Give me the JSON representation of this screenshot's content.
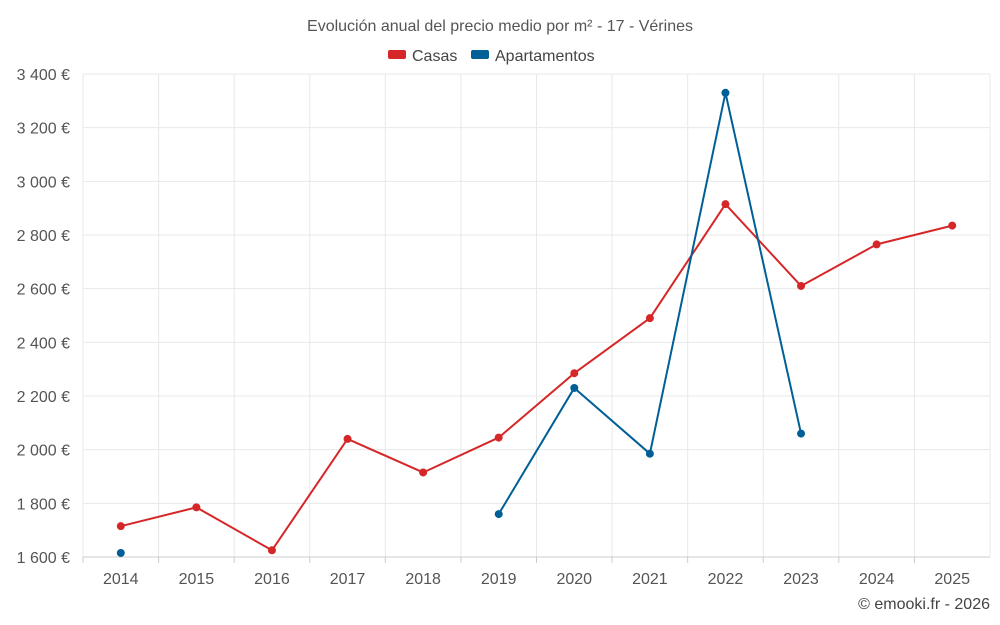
{
  "chart_data": {
    "type": "line",
    "title": "Evolución anual del precio medio por m² - 17 - Vérines",
    "categories": [
      "2014",
      "2015",
      "2016",
      "2017",
      "2018",
      "2019",
      "2020",
      "2021",
      "2022",
      "2023",
      "2024",
      "2025"
    ],
    "series": [
      {
        "name": "Casas",
        "color": "#d62728",
        "values": [
          1715,
          1785,
          1625,
          2040,
          1915,
          2045,
          2285,
          2490,
          2915,
          2610,
          2765,
          2835
        ]
      },
      {
        "name": "Apartamentos",
        "color": "#005f96",
        "values": [
          1615,
          null,
          null,
          null,
          null,
          1760,
          2230,
          1985,
          3330,
          2060,
          null,
          null
        ]
      }
    ],
    "ylim": [
      1600,
      3400
    ],
    "yticks": [
      1600,
      1800,
      2000,
      2200,
      2400,
      2600,
      2800,
      3000,
      3200,
      3400
    ],
    "ytick_labels": [
      "1 600 €",
      "1 800 €",
      "2 000 €",
      "2 200 €",
      "2 400 €",
      "2 600 €",
      "2 800 €",
      "3 000 €",
      "3 200 €",
      "3 400 €"
    ],
    "xlabel": "",
    "ylabel": "",
    "grid": true,
    "legend_position": "top-center"
  },
  "credit": "© emooki.fr - 2026"
}
